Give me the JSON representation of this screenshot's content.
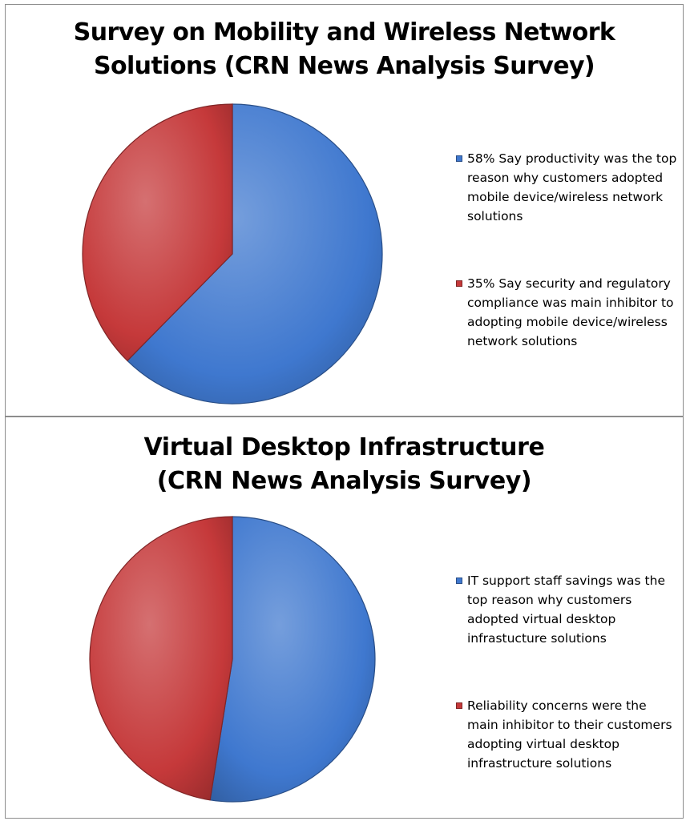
{
  "chart_data": [
    {
      "type": "pie",
      "title": [
        "Survey  on Mobility and Wireless Network",
        "Solutions (CRN News Analysis Survey)"
      ],
      "legend_position": "right",
      "slices": [
        {
          "label": [
            "58% Say productivity was the top",
            "reason why customers adopted",
            "mobile device/wireless network",
            "solutions"
          ],
          "value": 58,
          "color": "#3f78cf"
        },
        {
          "label": [
            "35% Say security and regulatory",
            "compliance was main inhibitor to",
            "adopting mobile device/wireless",
            "network solutions"
          ],
          "value": 35,
          "color": "#c5393a"
        }
      ]
    },
    {
      "type": "pie",
      "title": [
        "Virtual Desktop Infrastructure",
        "(CRN News Analysis Survey)"
      ],
      "legend_position": "right",
      "slices": [
        {
          "label": [
            "IT support staff savings was the",
            "top reason why customers",
            "adopted virtual desktop",
            "infrastucture solutions"
          ],
          "value": 52.5,
          "color": "#3f78cf"
        },
        {
          "label": [
            "Reliability concerns were the",
            "main inhibitor to their customers",
            "adopting virtual desktop",
            "infrastructure solutions"
          ],
          "value": 47.5,
          "color": "#c5393a"
        }
      ]
    }
  ]
}
